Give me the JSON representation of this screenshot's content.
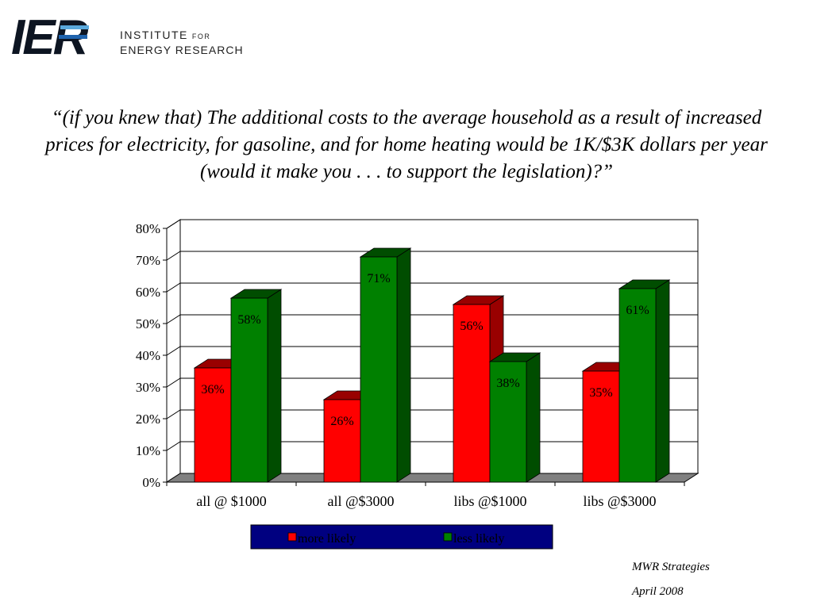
{
  "logo": {
    "mark": "IER",
    "line1": "INSTITUTE",
    "line1_suffix": "FOR",
    "line2": "ENERGY RESEARCH"
  },
  "title": "“(if you knew that) The additional costs to the average household as a result of increased prices for electricity, for gasoline, and for home heating would be 1K/$3K dollars per year (would it make you . . . to support the legislation)?”",
  "chart_data": {
    "type": "bar",
    "categories": [
      "all @ $1000",
      "all @$3000",
      "libs @$1000",
      "libs @$3000"
    ],
    "series": [
      {
        "name": "more likely",
        "values": [
          36,
          26,
          56,
          35
        ],
        "labels": [
          "36%",
          "26%",
          "56%",
          "35%"
        ],
        "color": "#ff0000",
        "side_color": "#990000"
      },
      {
        "name": "less likely",
        "values": [
          58,
          71,
          38,
          61
        ],
        "labels": [
          "58%",
          "71%",
          "38%",
          "61%"
        ],
        "color": "#008000",
        "side_color": "#004d00"
      }
    ],
    "ylim": [
      0,
      80
    ],
    "y_ticks": [
      0,
      10,
      20,
      30,
      40,
      50,
      60,
      70,
      80
    ],
    "y_tick_labels": [
      "0%",
      "10%",
      "20%",
      "30%",
      "40%",
      "50%",
      "60%",
      "70%",
      "80%"
    ],
    "grid": true,
    "legend_position": "bottom",
    "legend_bg": "#000080",
    "floor_color": "#808080"
  },
  "footer": {
    "source": "MWR Strategies",
    "date": "April 2008"
  }
}
